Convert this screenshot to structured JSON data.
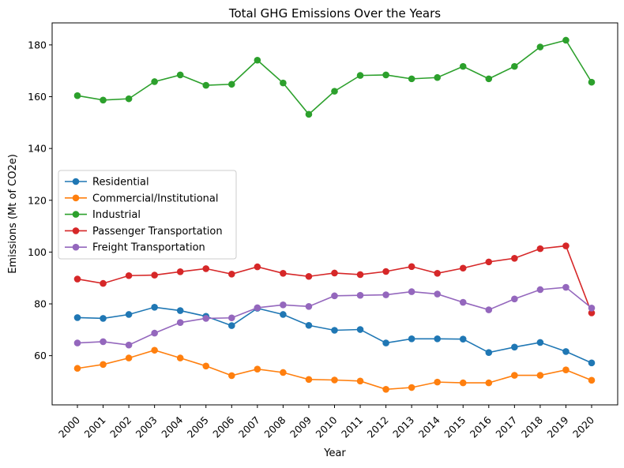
{
  "chart_data": {
    "type": "line",
    "title": "Total GHG Emissions Over the Years",
    "xlabel": "Year",
    "ylabel": "Emissions (Mt of CO2e)",
    "x": [
      "2000",
      "2001",
      "2002",
      "2003",
      "2004",
      "2005",
      "2006",
      "2007",
      "2008",
      "2009",
      "2010",
      "2011",
      "2012",
      "2013",
      "2014",
      "2015",
      "2016",
      "2017",
      "2018",
      "2019",
      "2020"
    ],
    "ylim": [
      41,
      188.5
    ],
    "yticks": [
      60,
      80,
      100,
      120,
      140,
      160,
      180
    ],
    "grid": false,
    "legend_position": "center-left",
    "series": [
      {
        "name": "Residential",
        "color": "#1f77b4",
        "values": [
          74.7,
          74.4,
          75.9,
          78.7,
          77.4,
          75.2,
          71.6,
          78.3,
          75.9,
          71.7,
          69.8,
          70.1,
          64.9,
          66.5,
          66.5,
          66.4,
          61.2,
          63.3,
          65.1,
          61.6,
          57.2
        ]
      },
      {
        "name": "Commercial/Institutional",
        "color": "#ff7f0e",
        "values": [
          55.1,
          56.6,
          59.1,
          62.1,
          59.1,
          56.0,
          52.3,
          54.8,
          53.5,
          50.8,
          50.6,
          50.2,
          47.0,
          47.7,
          49.8,
          49.5,
          49.5,
          52.4,
          52.4,
          54.5,
          50.5
        ]
      },
      {
        "name": "Industrial",
        "color": "#2ca02c",
        "values": [
          160.4,
          158.7,
          159.2,
          165.8,
          168.4,
          164.4,
          164.8,
          174.1,
          165.3,
          153.2,
          162.1,
          168.2,
          168.4,
          166.9,
          167.4,
          171.7,
          166.9,
          171.7,
          179.2,
          181.8,
          165.6
        ]
      },
      {
        "name": "Passenger Transportation",
        "color": "#d62728",
        "values": [
          89.6,
          87.9,
          90.9,
          91.1,
          92.4,
          93.6,
          91.5,
          94.3,
          91.8,
          90.6,
          91.9,
          91.3,
          92.5,
          94.4,
          91.8,
          93.8,
          96.2,
          97.6,
          101.3,
          102.4,
          76.5
        ]
      },
      {
        "name": "Freight Transportation",
        "color": "#9467bd",
        "values": [
          64.9,
          65.4,
          64.1,
          68.7,
          72.8,
          74.4,
          74.6,
          78.5,
          79.6,
          79.0,
          83.1,
          83.3,
          83.5,
          84.7,
          83.8,
          80.6,
          77.7,
          81.9,
          85.5,
          86.4,
          78.4
        ]
      }
    ]
  }
}
